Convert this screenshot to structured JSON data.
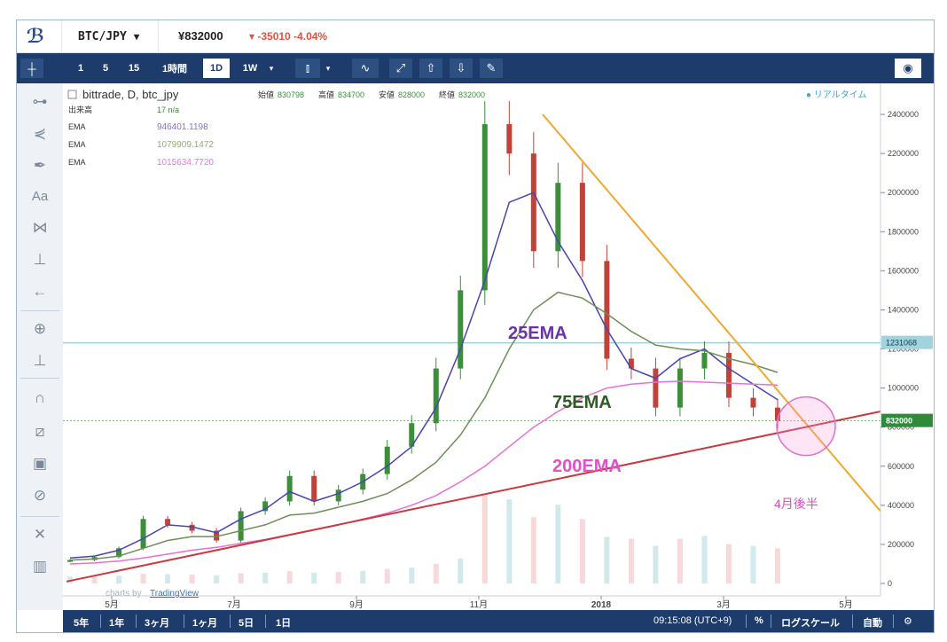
{
  "topbar": {
    "symbol": "BTC/JPY",
    "price": "¥832000",
    "change": "-35010 -4.04%"
  },
  "toolbar": {
    "intervals": [
      "1",
      "5",
      "15",
      "1時間",
      "1D",
      "1W"
    ],
    "selected_interval": "1D"
  },
  "legend": {
    "title": "bittrade, D, btc_jpy",
    "ohlc_labels": [
      "始値",
      "高値",
      "安値",
      "終値"
    ],
    "ohlc_values": [
      "830798",
      "834700",
      "828000",
      "832000"
    ],
    "volume_label": "出来高",
    "volume_value": "17 n/a",
    "ema_rows": [
      {
        "label": "EMA",
        "value": "946401.1198",
        "color": "#8a6fd1"
      },
      {
        "label": "EMA",
        "value": "1079909.1472",
        "color": "#8fb06a"
      },
      {
        "label": "EMA",
        "value": "1015634.7720",
        "color": "#e877d8"
      }
    ],
    "realtime": "● リアルタイム"
  },
  "annotations": {
    "ema25": "25EMA",
    "ema75": "75EMA",
    "ema200": "200EMA",
    "target": "4月後半"
  },
  "watermark": {
    "prefix": "charts by",
    "brand": "TradingView"
  },
  "chart_data": {
    "type": "line",
    "title": "",
    "xlabel": "",
    "ylabel": "",
    "x_ticks": [
      "5月",
      "7月",
      "9月",
      "11月",
      "2018",
      "3月",
      "5月"
    ],
    "y_ticks": [
      0,
      200000,
      400000,
      600000,
      800000,
      1000000,
      1200000,
      1400000,
      1600000,
      1800000,
      2000000,
      2200000,
      2400000
    ],
    "ylim": [
      0,
      2450000
    ],
    "price_labels": {
      "horizontal_line": "1231068",
      "last": "832000"
    },
    "series": [
      {
        "name": "25EMA",
        "color": "#4a44b0",
        "values": [
          130000,
          140000,
          170000,
          230000,
          300000,
          290000,
          260000,
          330000,
          380000,
          470000,
          420000,
          460000,
          520000,
          600000,
          700000,
          900000,
          1200000,
          1550000,
          1950000,
          2000000,
          1750000,
          1550000,
          1300000,
          1100000,
          1050000,
          1150000,
          1200000,
          1100000,
          1020000,
          940000
        ]
      },
      {
        "name": "75EMA",
        "color": "#6e8f56",
        "values": [
          120000,
          125000,
          140000,
          180000,
          220000,
          240000,
          240000,
          270000,
          300000,
          350000,
          360000,
          390000,
          420000,
          460000,
          530000,
          620000,
          760000,
          950000,
          1200000,
          1400000,
          1490000,
          1460000,
          1380000,
          1290000,
          1220000,
          1200000,
          1190000,
          1150000,
          1120000,
          1080000
        ]
      },
      {
        "name": "200EMA",
        "color": "#e86fd4",
        "values": [
          100000,
          105000,
          115000,
          130000,
          150000,
          170000,
          185000,
          205000,
          225000,
          250000,
          275000,
          300000,
          330000,
          360000,
          400000,
          450000,
          520000,
          600000,
          700000,
          800000,
          880000,
          950000,
          1000000,
          1020000,
          1030000,
          1035000,
          1030000,
          1025000,
          1020000,
          1015000
        ]
      },
      {
        "name": "Close",
        "color": "#3b8f3b",
        "values": [
          120000,
          135000,
          180000,
          330000,
          300000,
          270000,
          220000,
          370000,
          420000,
          550000,
          420000,
          480000,
          560000,
          700000,
          820000,
          1100000,
          1500000,
          2350000,
          2200000,
          1700000,
          2050000,
          1650000,
          1150000,
          1100000,
          900000,
          1100000,
          1180000,
          950000,
          900000,
          832000
        ]
      }
    ],
    "trendlines": [
      {
        "name": "resistance",
        "color": "#f0a830",
        "from": [
          0.585,
          2400000
        ],
        "to": [
          1.0,
          370000
        ]
      },
      {
        "name": "support",
        "color": "#c9393e",
        "from": [
          0.0,
          10000
        ],
        "to": [
          1.0,
          880000
        ]
      }
    ],
    "grid": false,
    "legend": "top-left"
  },
  "bottombar": {
    "ranges": [
      "5年",
      "1年",
      "3ヶ月",
      "1ヶ月",
      "5日",
      "1日"
    ],
    "time": "09:15:08 (UTC+9)",
    "percent": "%",
    "logscale": "ログスケール",
    "auto": "自動",
    "settings_icon": "gear-icon"
  }
}
